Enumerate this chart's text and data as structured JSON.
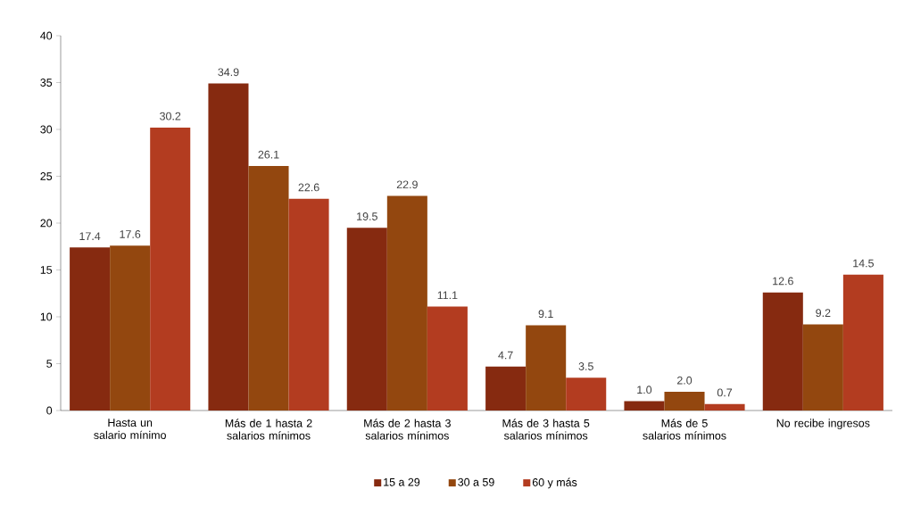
{
  "chart_data": {
    "type": "bar",
    "categories": [
      "Hasta un salario mínimo",
      "Más de 1 hasta 2 salarios mínimos",
      "Más de 2 hasta 3 salarios mínimos",
      "Más de 3 hasta 5 salarios mínimos",
      "Más de 5 salarios mínimos",
      "No recibe ingresos"
    ],
    "series": [
      {
        "name": "15 a 29",
        "color": "#862a10",
        "values": [
          17.4,
          34.9,
          19.5,
          4.7,
          1.0,
          12.6
        ],
        "value_labels": [
          "17.4",
          "34.9",
          "19.5",
          "4.7",
          "1.0",
          "12.6"
        ]
      },
      {
        "name": "30 a 59",
        "color": "#93470f",
        "values": [
          17.6,
          26.1,
          22.9,
          9.1,
          2.0,
          9.2
        ],
        "value_labels": [
          "17.6",
          "26.1",
          "22.9",
          "9.1",
          "2.0",
          "9.2"
        ]
      },
      {
        "name": "60 y más",
        "color": "#b33c20",
        "values": [
          30.2,
          22.6,
          11.1,
          3.5,
          0.7,
          14.5
        ],
        "value_labels": [
          "30.2",
          "22.6",
          "11.1",
          "3.5",
          "0.7",
          "14.5"
        ]
      }
    ],
    "ylim": [
      0,
      40
    ],
    "yticks": [
      0,
      5,
      10,
      15,
      20,
      25,
      30,
      35,
      40
    ],
    "grid": false,
    "legend": "bottom"
  }
}
